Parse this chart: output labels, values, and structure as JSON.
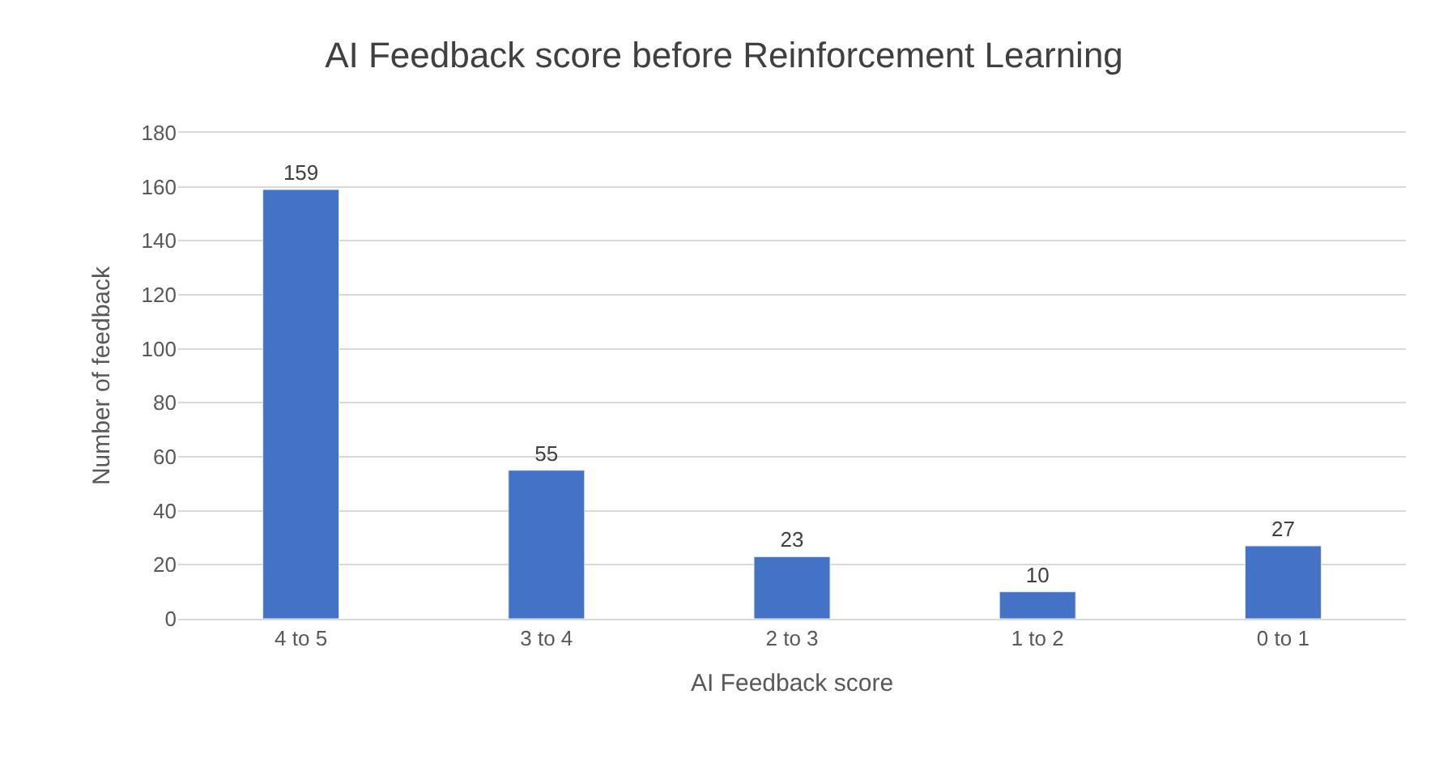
{
  "chart_data": {
    "type": "bar",
    "title": "AI Feedback score before Reinforcement Learning",
    "xlabel": "AI Feedback score",
    "ylabel": "Number of feedback",
    "categories": [
      "4 to 5",
      "3 to 4",
      "2 to 3",
      "1 to 2",
      "0 to 1"
    ],
    "values": [
      159,
      55,
      23,
      10,
      27
    ],
    "color": "#4472c4",
    "ylim": [
      0,
      180
    ],
    "yticks": [
      0,
      20,
      40,
      60,
      80,
      100,
      120,
      140,
      160,
      180
    ],
    "grid": "y",
    "data_labels": true
  }
}
